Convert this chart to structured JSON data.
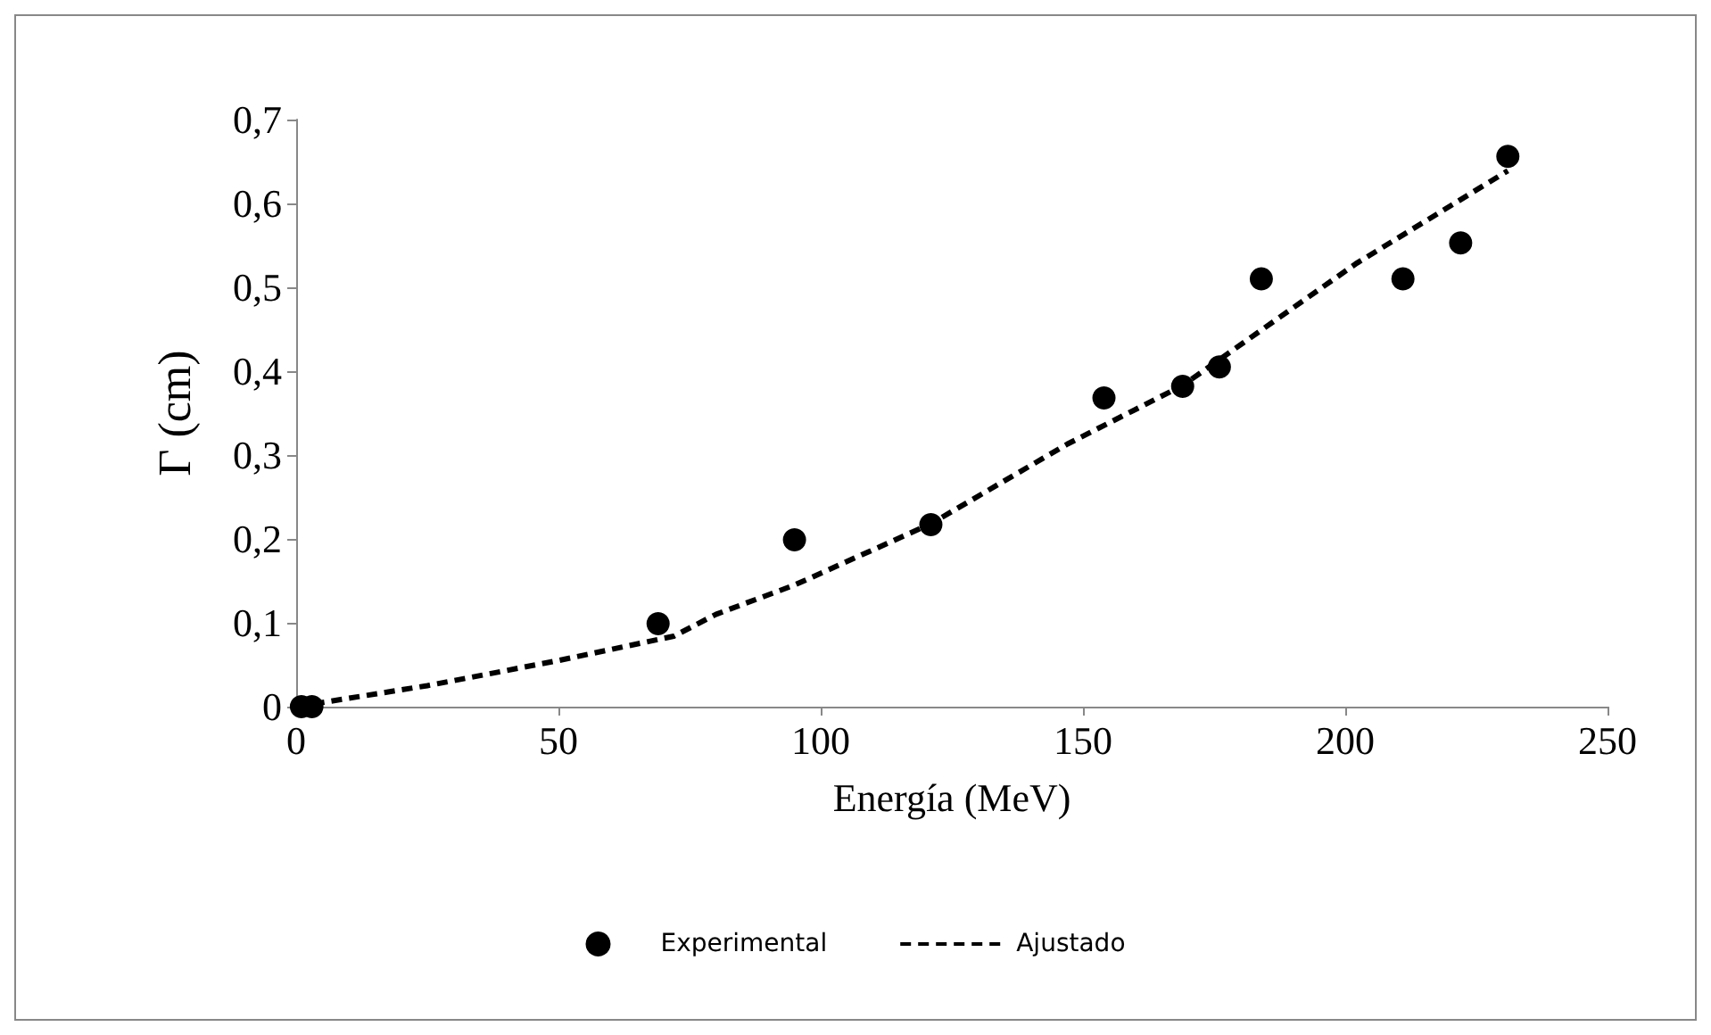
{
  "chart_data": {
    "type": "scatter",
    "xlabel": "Energía (MeV)",
    "ylabel": "Γ (cm)",
    "xlim": [
      0,
      250
    ],
    "xticks": [
      0,
      50,
      100,
      150,
      200,
      250
    ],
    "ylim": [
      0,
      0.7
    ],
    "yticks": [
      {
        "value": 0,
        "label": "0"
      },
      {
        "value": 0.1,
        "label": "0,1"
      },
      {
        "value": 0.2,
        "label": "0,2"
      },
      {
        "value": 0.3,
        "label": "0,3"
      },
      {
        "value": 0.4,
        "label": "0,4"
      },
      {
        "value": 0.5,
        "label": "0,5"
      },
      {
        "value": 0.6,
        "label": "0,6"
      },
      {
        "value": 0.7,
        "label": "0,7"
      }
    ],
    "grid": false,
    "legend": "bottom",
    "series": [
      {
        "name": "Experimental",
        "marker": "circle",
        "color": "#000000",
        "x": [
          1,
          3,
          69,
          95,
          121,
          154,
          169,
          176,
          184,
          211,
          222,
          231
        ],
        "values": [
          0,
          0,
          0.099,
          0.199,
          0.217,
          0.368,
          0.382,
          0.405,
          0.51,
          0.51,
          0.553,
          0.656
        ]
      },
      {
        "name": "Ajustado",
        "type": "line",
        "marker": "none",
        "line_style": "dashed",
        "color": "#000000",
        "x": [
          0,
          25,
          50,
          72,
          80,
          95,
          121,
          147,
          169,
          202,
          231
        ],
        "values": [
          0,
          0.025,
          0.055,
          0.084,
          0.11,
          0.145,
          0.218,
          0.313,
          0.383,
          0.528,
          0.639
        ]
      }
    ]
  }
}
